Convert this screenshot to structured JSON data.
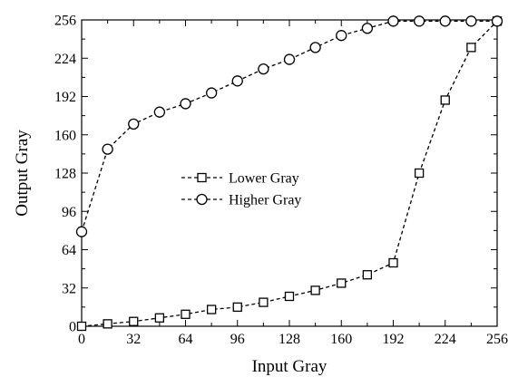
{
  "chart_data": {
    "type": "line",
    "title": "",
    "xlabel": "Input Gray",
    "ylabel": "Output Gray",
    "xlim": [
      0,
      256
    ],
    "ylim": [
      0,
      256
    ],
    "xticks": [
      0,
      32,
      64,
      96,
      128,
      160,
      192,
      224,
      256
    ],
    "yticks": [
      0,
      32,
      64,
      96,
      128,
      160,
      192,
      224,
      256
    ],
    "grid": false,
    "legend_position": "center-left",
    "series": [
      {
        "name": "Lower Gray",
        "marker": "square",
        "line_style": "dashed",
        "color": "#000000",
        "x": [
          0,
          16,
          32,
          48,
          64,
          80,
          96,
          112,
          128,
          144,
          160,
          176,
          192,
          208,
          224,
          240,
          256
        ],
        "y": [
          0,
          2,
          4,
          7,
          10,
          14,
          16,
          20,
          25,
          30,
          36,
          43,
          53,
          128,
          189,
          233,
          255
        ]
      },
      {
        "name": "Higher Gray",
        "marker": "circle",
        "line_style": "dashed",
        "color": "#000000",
        "x": [
          0,
          16,
          32,
          48,
          64,
          80,
          96,
          112,
          128,
          144,
          160,
          176,
          192,
          208,
          224,
          240,
          256
        ],
        "y": [
          79,
          148,
          169,
          179,
          186,
          195,
          205,
          215,
          223,
          233,
          243,
          249,
          255,
          255,
          255,
          255,
          255
        ]
      }
    ]
  }
}
